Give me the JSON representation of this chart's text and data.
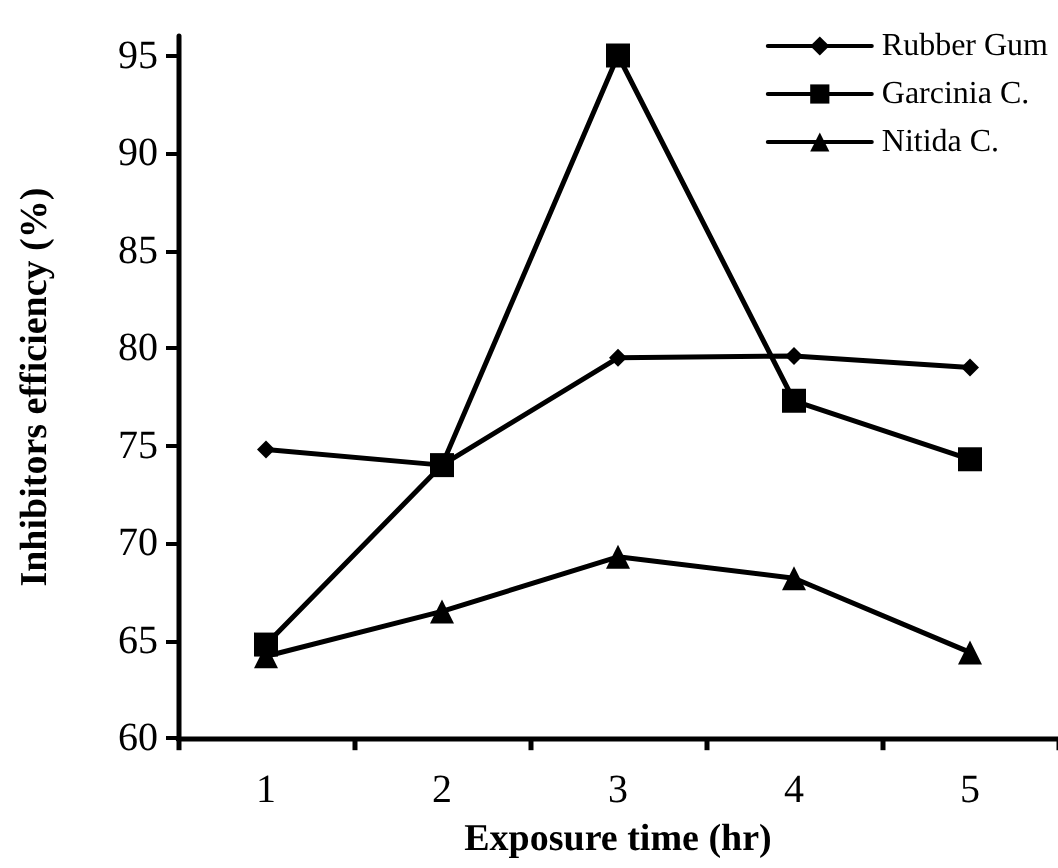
{
  "chart_data": {
    "type": "line",
    "xlabel": "Exposure time (hr)",
    "ylabel": "Inhibitors efficiency (%)",
    "categories": [
      "1",
      "2",
      "3",
      "4",
      "5"
    ],
    "series": [
      {
        "name": "Rubber Gum",
        "color": "#000000",
        "marker": "diamond",
        "values": [
          74.8,
          74.0,
          79.5,
          79.6,
          79.0
        ]
      },
      {
        "name": "Garcinia C.",
        "color": "#000000",
        "marker": "square",
        "values": [
          64.8,
          74.0,
          95.0,
          77.3,
          74.3
        ]
      },
      {
        "name": "Nitida C.",
        "color": "#000000",
        "marker": "triangle",
        "values": [
          64.2,
          66.5,
          69.3,
          68.2,
          64.4
        ]
      }
    ],
    "ylim": [
      60,
      96
    ],
    "yticks": [
      60,
      65,
      70,
      75,
      80,
      85,
      90,
      95
    ],
    "grid": false,
    "legend": "top right",
    "line_style": "solid"
  }
}
